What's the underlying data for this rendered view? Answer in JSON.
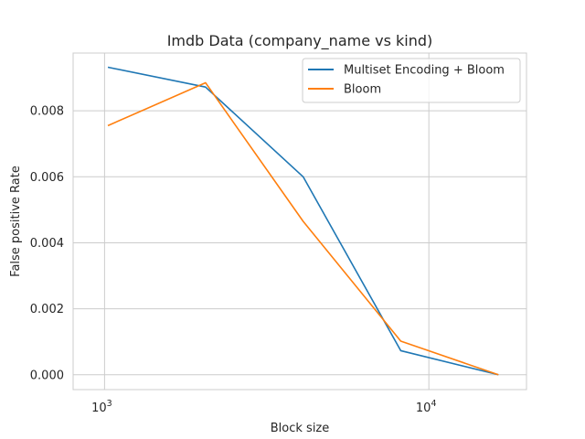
{
  "chart_data": {
    "type": "line",
    "title": "Imdb Data (company_name vs kind)",
    "xlabel": "Block size",
    "ylabel": "False positive Rate",
    "xscale": "log",
    "xlim": [
      800,
      20000
    ],
    "ylim": [
      -0.00045,
      0.00975
    ],
    "grid": true,
    "legend_position": "top-right",
    "x_ticks": [
      {
        "value": 1000,
        "base": "10",
        "exp": "3"
      },
      {
        "value": 10000,
        "base": "10",
        "exp": "4"
      }
    ],
    "y_ticks": [
      {
        "value": 0.0,
        "label": "0.000"
      },
      {
        "value": 0.002,
        "label": "0.002"
      },
      {
        "value": 0.004,
        "label": "0.004"
      },
      {
        "value": 0.006,
        "label": "0.006"
      },
      {
        "value": 0.008,
        "label": "0.008"
      }
    ],
    "series": [
      {
        "name": "Multiset Encoding + Bloom",
        "color": "#1f77b4",
        "x": [
          1024,
          2048,
          4096,
          8192,
          16384
        ],
        "y": [
          0.00932,
          0.00872,
          0.006,
          0.00073,
          0.0
        ]
      },
      {
        "name": "Bloom",
        "color": "#ff7f0e",
        "x": [
          1024,
          2048,
          4096,
          8192,
          16384
        ],
        "y": [
          0.00755,
          0.00885,
          0.00465,
          0.00102,
          0.0
        ]
      }
    ]
  }
}
